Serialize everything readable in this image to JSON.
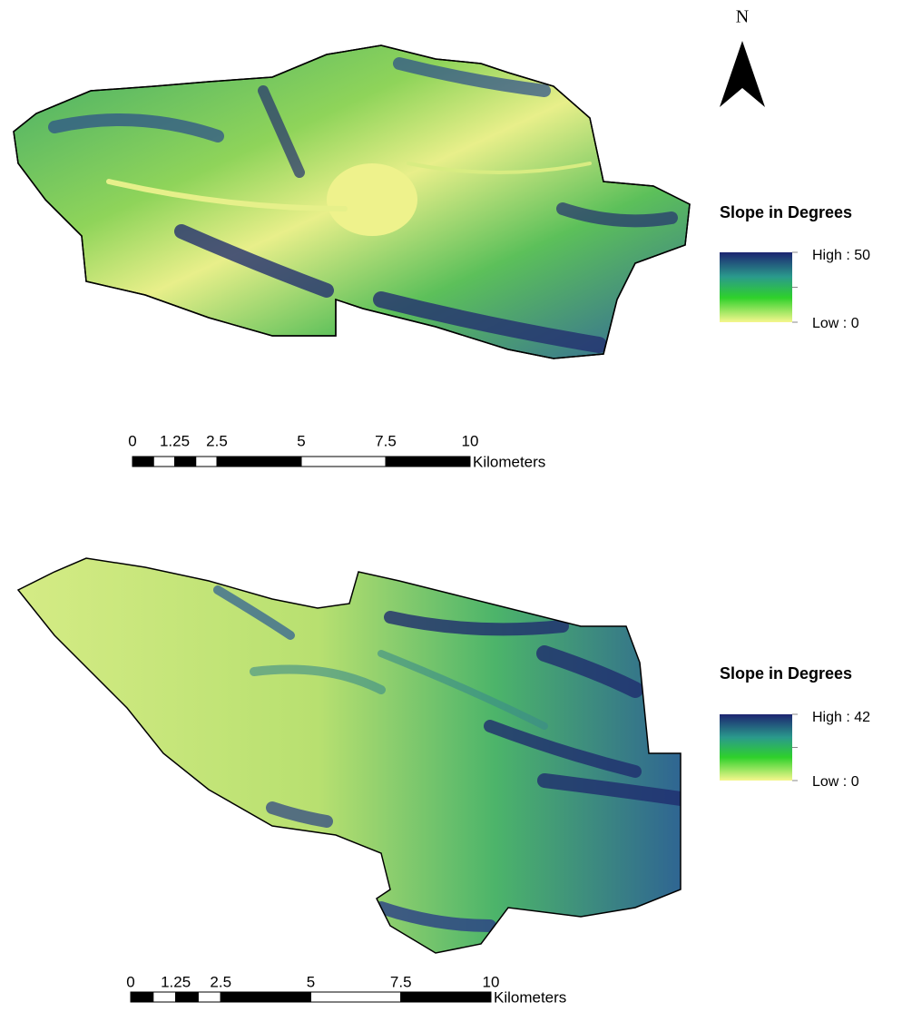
{
  "north_arrow": {
    "label": "N"
  },
  "panels": [
    {
      "legend": {
        "title": "Slope in Degrees",
        "high_label": "High : 50",
        "low_label": "Low : 0"
      },
      "scale_bar": {
        "ticks": [
          0,
          1.25,
          2.5,
          5,
          7.5,
          10
        ],
        "unit": "Kilometers"
      }
    },
    {
      "legend": {
        "title": "Slope in Degrees",
        "high_label": "High : 42",
        "low_label": "Low : 0"
      },
      "scale_bar": {
        "ticks": [
          0,
          1.25,
          2.5,
          5,
          7.5,
          10
        ],
        "unit": "Kilometers"
      }
    }
  ]
}
